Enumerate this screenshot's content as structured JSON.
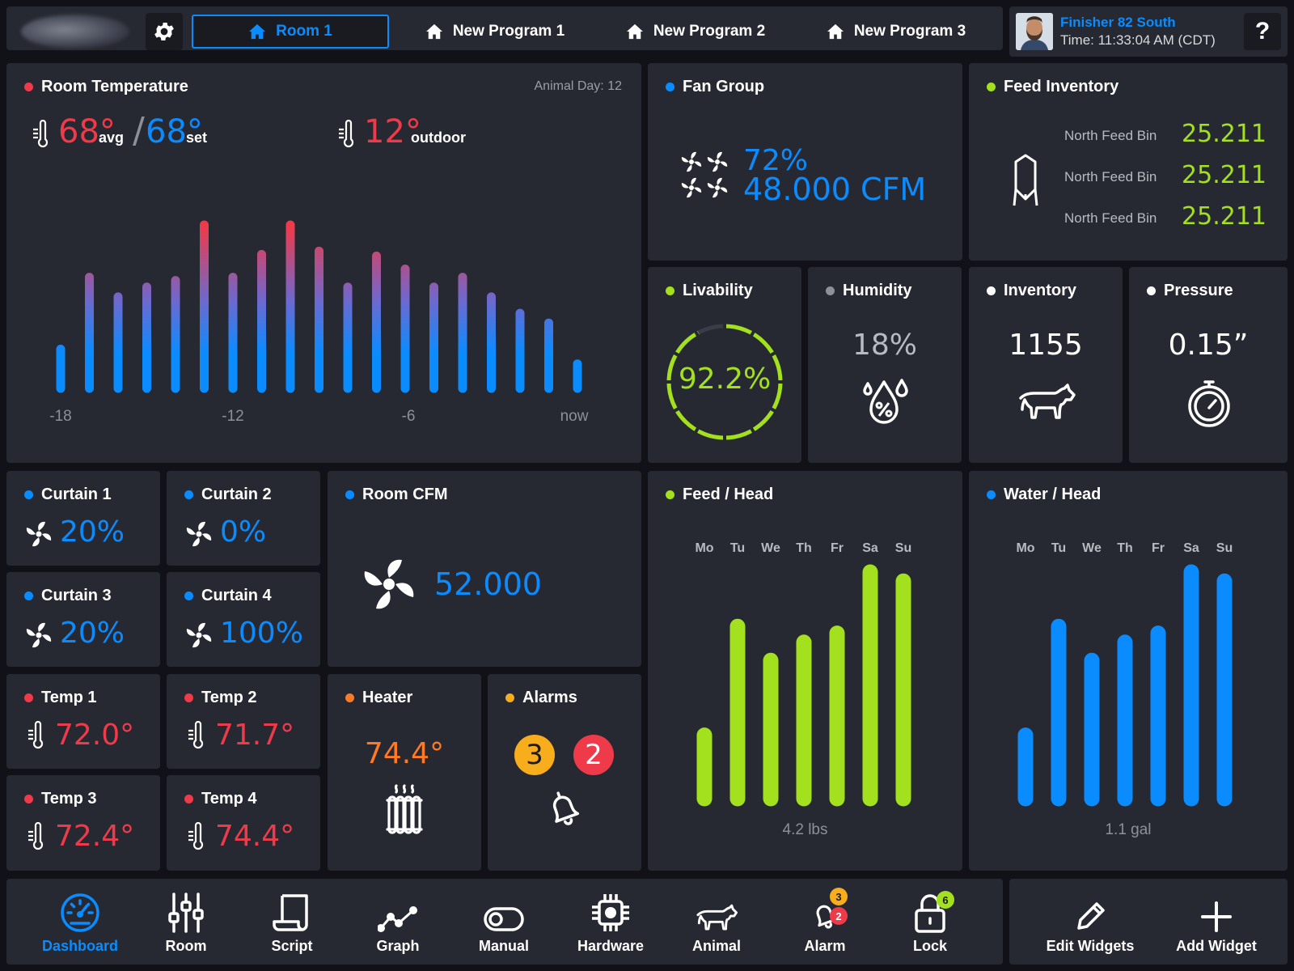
{
  "topbar": {
    "tabs": [
      {
        "label": "Room 1",
        "active": true
      },
      {
        "label": "New Program 1"
      },
      {
        "label": "New Program 2"
      },
      {
        "label": "New Program 3"
      }
    ],
    "user_name": "Finisher 82 South",
    "time": "Time: 11:33:04 AM (CDT)",
    "help": "?"
  },
  "room_temp": {
    "title": "Room Temperature",
    "animal_day": "Animal Day: 12",
    "avg_value": "68°",
    "avg_label": "avg",
    "separator": "/",
    "set_value": "68°",
    "set_label": "set",
    "outdoor_value": "12°",
    "outdoor_label": "outdoor",
    "x_ticks": [
      "-18",
      "-12",
      "-6",
      "now"
    ]
  },
  "chart_data": [
    {
      "type": "bar",
      "title": "",
      "values": [
        0.24,
        0.68,
        0.56,
        0.62,
        0.66,
        1.0,
        0.68,
        0.82,
        1.0,
        0.84,
        0.62,
        0.81,
        0.73,
        0.62,
        0.68,
        0.56,
        0.46,
        0.4,
        0.15
      ],
      "xlabel": "",
      "ylabel": "",
      "x_ticks": [
        "-18",
        "-12",
        "-6",
        "now"
      ],
      "colors": {
        "low": "#0a8cff",
        "high": "#ef3a4a"
      }
    },
    {
      "type": "bar",
      "title": "Feed / Head",
      "categories": [
        "Mo",
        "Tu",
        "We",
        "Th",
        "Fr",
        "Sa",
        "Su"
      ],
      "values": [
        0.28,
        0.76,
        0.61,
        0.69,
        0.73,
        1.0,
        0.96
      ],
      "xlabel": "4.2 lbs",
      "color": "#a3e01d"
    },
    {
      "type": "bar",
      "title": "Water / Head",
      "categories": [
        "Mo",
        "Tu",
        "We",
        "Th",
        "Fr",
        "Sa",
        "Su"
      ],
      "values": [
        0.28,
        0.76,
        0.61,
        0.69,
        0.73,
        1.0,
        0.96
      ],
      "xlabel": "1.1 gal",
      "color": "#0a8cff"
    }
  ],
  "fan_group": {
    "title": "Fan Group",
    "percent": "72%",
    "cfm": "48.000 CFM"
  },
  "feed_inventory": {
    "title": "Feed Inventory",
    "rows": [
      {
        "label": "North Feed Bin",
        "value": "25.211"
      },
      {
        "label": "North Feed Bin",
        "value": "25.211"
      },
      {
        "label": "North Feed Bin",
        "value": "25.211"
      }
    ]
  },
  "livability": {
    "title": "Livability",
    "value": "92.2%",
    "fraction": 0.922
  },
  "humidity": {
    "title": "Humidity",
    "value": "18%"
  },
  "inventory": {
    "title": "Inventory",
    "value": "1155"
  },
  "pressure": {
    "title": "Pressure",
    "value": "0.15”"
  },
  "curtains": [
    {
      "title": "Curtain 1",
      "value": "20%"
    },
    {
      "title": "Curtain 2",
      "value": "0%"
    },
    {
      "title": "Curtain 3",
      "value": "20%"
    },
    {
      "title": "Curtain 4",
      "value": "100%"
    }
  ],
  "temps": [
    {
      "title": "Temp 1",
      "value": "72.0°"
    },
    {
      "title": "Temp 2",
      "value": "71.7°"
    },
    {
      "title": "Temp 3",
      "value": "72.4°"
    },
    {
      "title": "Temp 4",
      "value": "74.4°"
    }
  ],
  "room_cfm": {
    "title": "Room CFM",
    "value": "52.000"
  },
  "heater": {
    "title": "Heater",
    "value": "74.4°"
  },
  "alarms": {
    "title": "Alarms",
    "warning_count": "3",
    "critical_count": "2"
  },
  "bottom_nav": {
    "items": [
      {
        "label": "Dashboard",
        "icon": "gauge-icon",
        "active": true
      },
      {
        "label": "Room",
        "icon": "sliders-icon"
      },
      {
        "label": "Script",
        "icon": "scroll-icon"
      },
      {
        "label": "Graph",
        "icon": "graph-icon"
      },
      {
        "label": "Manual",
        "icon": "toggle-icon"
      },
      {
        "label": "Hardware",
        "icon": "chip-icon"
      },
      {
        "label": "Animal",
        "icon": "cow-icon"
      },
      {
        "label": "Alarm",
        "icon": "bell-icon",
        "badges": [
          "3",
          "2"
        ]
      },
      {
        "label": "Lock",
        "icon": "lock-icon",
        "badge": "6"
      }
    ],
    "edit_widgets": "Edit Widgets",
    "add_widget": "Add Widget"
  },
  "colors": {
    "bg": "#111217",
    "panel": "#272932",
    "blue": "#0a8cff",
    "red": "#ef3a4a",
    "green": "#a3e01d",
    "orange": "#ff7a22",
    "amber": "#f7ad1c"
  }
}
